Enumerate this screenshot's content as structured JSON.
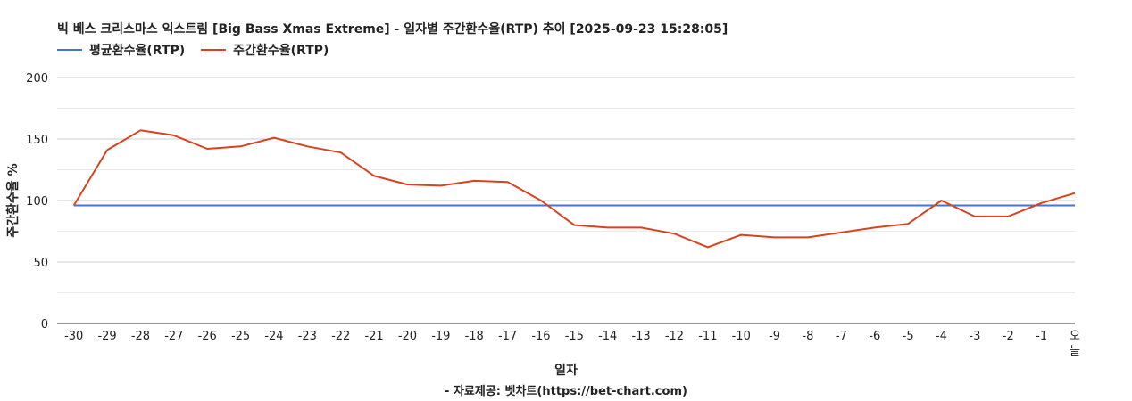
{
  "chart_data": {
    "type": "line",
    "title": "빅 베스 크리스마스 익스트림 [Big Bass Xmas Extreme] - 일자별 주간환수율(RTP) 추이 [2025-09-23 15:28:05]",
    "xlabel": "일자",
    "ylabel": "주간환수율 %",
    "source_note": "- 자료제공: 벳차트(https://bet-chart.com)",
    "categories": [
      "-30",
      "-29",
      "-28",
      "-27",
      "-26",
      "-25",
      "-24",
      "-23",
      "-22",
      "-21",
      "-20",
      "-19",
      "-18",
      "-17",
      "-16",
      "-15",
      "-14",
      "-13",
      "-12",
      "-11",
      "-10",
      "-9",
      "-8",
      "-7",
      "-6",
      "-5",
      "-4",
      "-3",
      "-2",
      "-1",
      "오늘"
    ],
    "ylim": [
      0,
      200
    ],
    "yticks": [
      0,
      50,
      100,
      150,
      200
    ],
    "grid": true,
    "legend_position": "top-left",
    "series": [
      {
        "name": "평균환수율(RTP)",
        "color": "#4a72d0",
        "values": [
          96,
          96,
          96,
          96,
          96,
          96,
          96,
          96,
          96,
          96,
          96,
          96,
          96,
          96,
          96,
          96,
          96,
          96,
          96,
          96,
          96,
          96,
          96,
          96,
          96,
          96,
          96,
          96,
          96,
          96,
          96
        ]
      },
      {
        "name": "주간환수율(RTP)",
        "color": "#d8431f",
        "values": [
          96,
          141,
          157,
          153,
          142,
          144,
          151,
          144,
          139,
          120,
          113,
          112,
          116,
          115,
          100,
          80,
          78,
          78,
          73,
          62,
          72,
          70,
          70,
          74,
          78,
          81,
          100,
          87,
          87,
          98,
          106
        ]
      }
    ]
  }
}
